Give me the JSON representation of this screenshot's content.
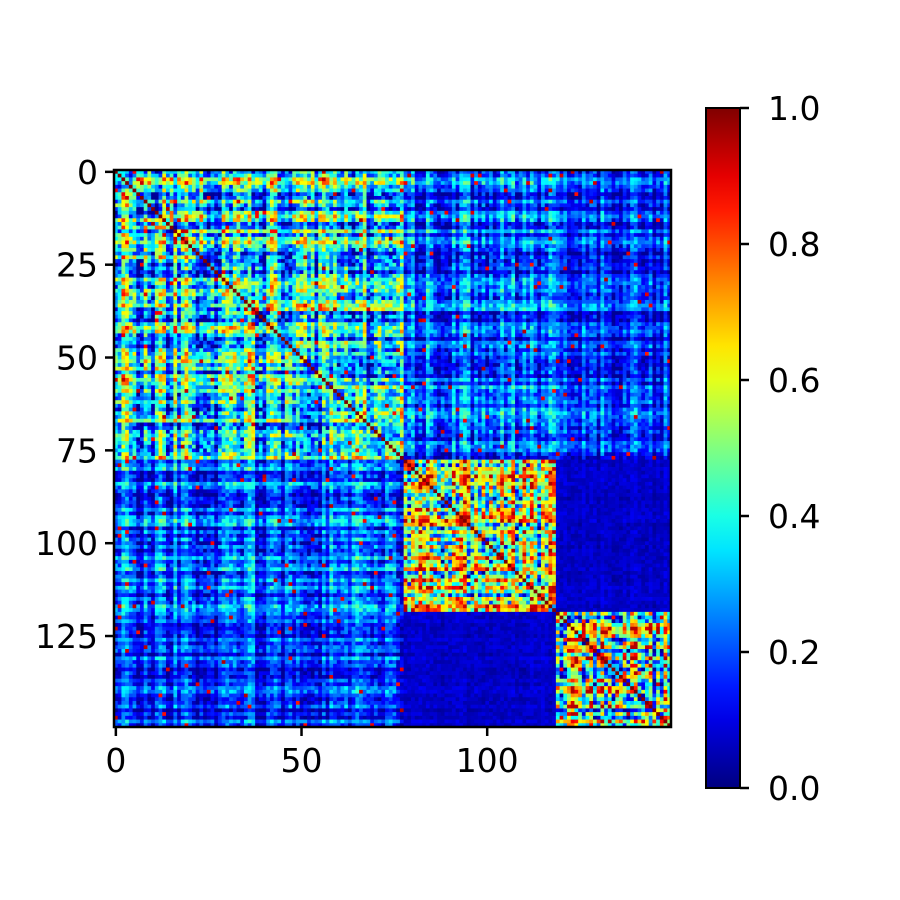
{
  "chart_data": {
    "type": "heatmap",
    "title": "",
    "xlabel": "",
    "ylabel": "",
    "n_rows": 150,
    "n_cols": 150,
    "colormap": "jet",
    "value_range": [
      0,
      1
    ],
    "diagonal_value": 1.0,
    "x_ticks": [
      0,
      50,
      100
    ],
    "x_tick_labels": [
      "0",
      "50",
      "100"
    ],
    "y_ticks": [
      0,
      25,
      50,
      75,
      100,
      125
    ],
    "y_tick_labels": [
      "0",
      "25",
      "50",
      "75",
      "100",
      "125"
    ],
    "colorbar": {
      "ticks": [
        0.0,
        0.2,
        0.4,
        0.6,
        0.8,
        1.0
      ],
      "tick_labels": [
        "0.0",
        "0.2",
        "0.4",
        "0.6",
        "0.8",
        "1.0"
      ]
    },
    "blocks": [
      {
        "rows": [
          0,
          78
        ],
        "cols": [
          0,
          78
        ],
        "mean": 0.38
      },
      {
        "rows": [
          0,
          78
        ],
        "cols": [
          78,
          119
        ],
        "mean": 0.22
      },
      {
        "rows": [
          0,
          78
        ],
        "cols": [
          119,
          150
        ],
        "mean": 0.18
      },
      {
        "rows": [
          78,
          119
        ],
        "cols": [
          0,
          78
        ],
        "mean": 0.2
      },
      {
        "rows": [
          78,
          119
        ],
        "cols": [
          78,
          119
        ],
        "mean": 0.5
      },
      {
        "rows": [
          78,
          119
        ],
        "cols": [
          119,
          150
        ],
        "mean": 0.07
      },
      {
        "rows": [
          119,
          150
        ],
        "cols": [
          0,
          78
        ],
        "mean": 0.16
      },
      {
        "rows": [
          119,
          150
        ],
        "cols": [
          78,
          119
        ],
        "mean": 0.07
      },
      {
        "rows": [
          119,
          150
        ],
        "cols": [
          119,
          150
        ],
        "mean": 0.5
      }
    ]
  }
}
